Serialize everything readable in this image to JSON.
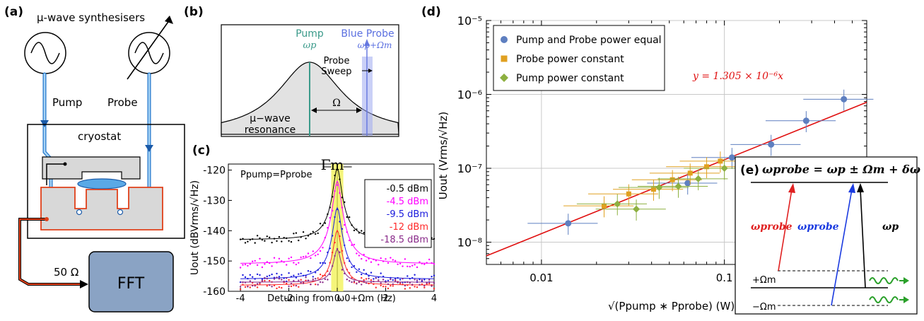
{
  "panels": {
    "a": {
      "label": "(a)",
      "synth_title": "µ-wave synthesisers",
      "pump_label": "Pump",
      "probe_label": "Probe",
      "cryostat_label": "cryostat",
      "resistor_label": "50 Ω",
      "fft_label": "FFT"
    },
    "b": {
      "label": "(b)",
      "pump_label": "Pump",
      "pump_freq": "ωp",
      "probe_label": "Blue Probe",
      "probe_freq": "ωp+Ωm",
      "sweep_label_1": "Probe",
      "sweep_label_2": "Sweep",
      "omega_label": "Ω",
      "resonance_label_1": "µ−wave",
      "resonance_label_2": "resonance"
    },
    "c": {
      "label": "(c)",
      "gamma_label": "Γm",
      "condition_label": "Ppump=Pprobe",
      "ylabel": "Uout (dBVrms/√Hz)",
      "xlabel": "Detuning from ω0+Ωm (Hz)"
    },
    "d": {
      "label": "(d)",
      "ylabel": "Uout (Vrms/√Hz)",
      "xlabel": "√(Ppump ∗ Pprobe)  (W)",
      "fit_label": "y = 1.305 × 10⁻⁶x"
    },
    "e": {
      "label": "(e)",
      "equation": "ωprobe = ωp ± Ωm + δω",
      "red_label": "ωprobe",
      "blue_label": "ωprobe",
      "pump_label": "ωp",
      "plus_label": "+Ωm",
      "minus_label": "−Ωm"
    }
  },
  "chart_data": [
    {
      "type": "line",
      "panel": "c",
      "xlabel": "Detuning from ω0+Ωm (Hz)",
      "ylabel": "Uout (dBVrms/√Hz)",
      "xlim": [
        -4.5,
        4
      ],
      "ylim": [
        -160,
        -118
      ],
      "xticks": [
        -4,
        -2,
        0,
        2,
        4
      ],
      "yticks": [
        -160,
        -150,
        -140,
        -130,
        -120
      ],
      "legend_position": "right",
      "series": [
        {
          "name": "-0.5 dBm",
          "color": "#000000",
          "peak": -120,
          "floor": -143,
          "width": 0.35
        },
        {
          "name": "-4.5 dBm",
          "color": "#ff00ff",
          "peak": -124,
          "floor": -151,
          "width": 0.35
        },
        {
          "name": "-9.5 dBm",
          "color": "#1a1adc",
          "peak": -133,
          "floor": -156,
          "width": 0.35
        },
        {
          "name": "-12 dBm",
          "color": "#ff2a2a",
          "peak": -141,
          "floor": -158,
          "width": 0.35
        },
        {
          "name": "-18.5 dBm",
          "color": "#8a2b8a",
          "peak": -149,
          "floor": -157,
          "width": 0.35
        }
      ]
    },
    {
      "type": "scatter",
      "panel": "d",
      "xscale": "log",
      "yscale": "log",
      "xlim": [
        0.005,
        0.6
      ],
      "ylim": [
        5e-09,
        1e-05
      ],
      "xticks": [
        0.01,
        0.1
      ],
      "xtick_labels": [
        "0.01",
        "0.1"
      ],
      "yticks": [
        1e-08,
        1e-07,
        1e-06,
        1e-05
      ],
      "ytick_labels": [
        "10⁻⁸",
        "10⁻⁷",
        "10⁻⁶",
        "10⁻⁵"
      ],
      "grid": true,
      "legend_position": "top-left",
      "fit": {
        "slope": 1.305e-06,
        "color": "#e01010"
      },
      "series": [
        {
          "name": "Pump and Probe power equal",
          "color": "#5e7fc0",
          "marker": "circle",
          "points": [
            [
              0.014,
              1.8e-08
            ],
            [
              0.063,
              6.3e-08
            ],
            [
              0.11,
              1.4e-07
            ],
            [
              0.18,
              2.1e-07
            ],
            [
              0.28,
              4.4e-07
            ],
            [
              0.45,
              8.6e-07
            ]
          ]
        },
        {
          "name": "Probe power constant",
          "color": "#e0a020",
          "marker": "square",
          "points": [
            [
              0.022,
              3.1e-08
            ],
            [
              0.03,
              4.5e-08
            ],
            [
              0.041,
              5.2e-08
            ],
            [
              0.052,
              7e-08
            ],
            [
              0.065,
              8.6e-08
            ],
            [
              0.08,
              1.05e-07
            ],
            [
              0.095,
              1.25e-07
            ]
          ]
        },
        {
          "name": "Pump power constant",
          "color": "#8db040",
          "marker": "diamond",
          "points": [
            [
              0.026,
              3.3e-08
            ],
            [
              0.033,
              2.8e-08
            ],
            [
              0.044,
              5.5e-08
            ],
            [
              0.056,
              5.7e-08
            ],
            [
              0.072,
              7.2e-08
            ],
            [
              0.1,
              1e-07
            ]
          ]
        }
      ]
    }
  ]
}
